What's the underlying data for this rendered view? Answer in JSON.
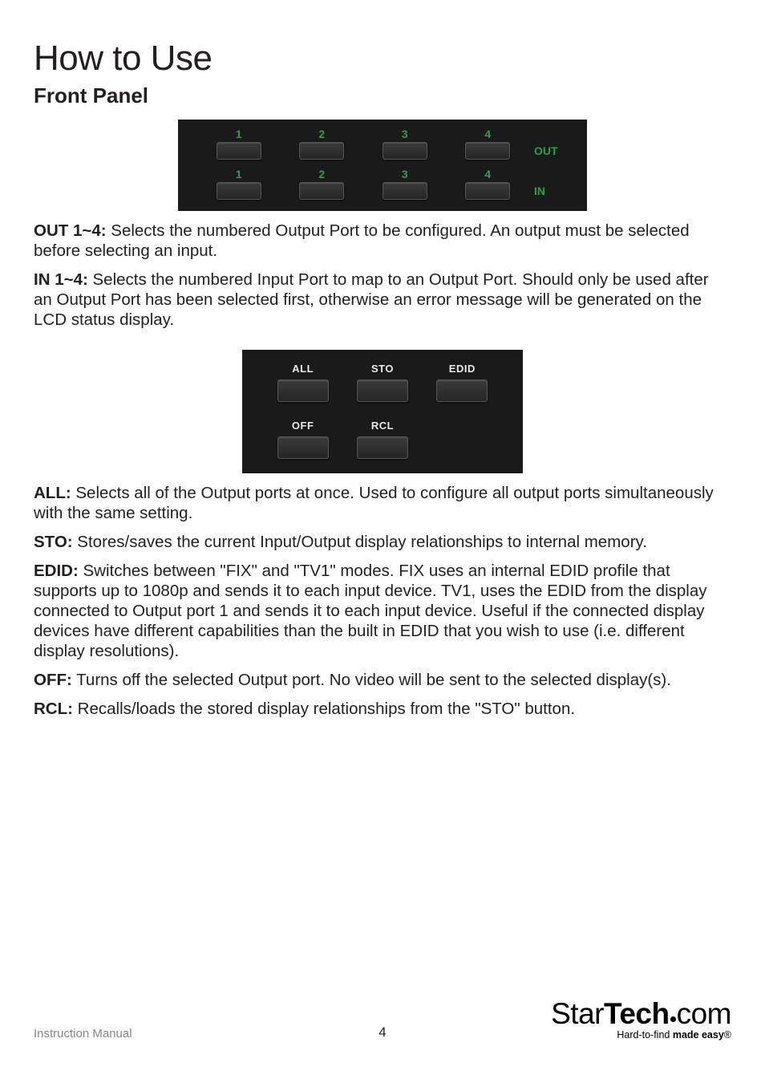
{
  "title": "How to Use",
  "subtitle": "Front Panel",
  "panel1": {
    "out_numbers": [
      "1",
      "2",
      "3",
      "4"
    ],
    "in_numbers": [
      "1",
      "2",
      "3",
      "4"
    ],
    "out_label": "OUT",
    "in_label": "IN",
    "bg_color": "#1a1a1a",
    "label_color": "#2aa04a"
  },
  "desc": {
    "out": {
      "lead": "OUT 1~4:",
      "text": " Selects the numbered Output Port to be configured.  An output must be selected before selecting an input."
    },
    "in": {
      "lead": "IN 1~4:",
      "text": " Selects the numbered Input Port to map to an Output Port.  Should only be used after an Output Port has been selected first, otherwise an error message will be generated on the LCD status display."
    }
  },
  "panel2": {
    "row1": [
      "ALL",
      "STO",
      "EDID"
    ],
    "row2": [
      "OFF",
      "RCL",
      ""
    ],
    "bg_color": "#1a1a1a",
    "label_color": "#e8e8e8"
  },
  "desc2": {
    "all": {
      "lead": "ALL:",
      "text": " Selects all of the Output ports at once.  Used to configure all output ports simultaneously with the same setting."
    },
    "sto": {
      "lead": "STO:",
      "text": " Stores/saves the current Input/Output display relationships to internal memory."
    },
    "edid": {
      "lead": "EDID:",
      "text": " Switches between \"FIX\" and \"TV1\" modes.  FIX uses an internal EDID profile that supports up to 1080p and sends it to each input device.  TV1, uses the EDID from the display connected to Output port 1 and sends it to each input device.  Useful if the connected display devices have different capabilities than the built in EDID that you wish to use (i.e. different display resolutions)."
    },
    "off": {
      "lead": "OFF:",
      "text": " Turns off the selected Output port.  No video will be sent to the selected display(s)."
    },
    "rcl": {
      "lead": "RCL:",
      "text": " Recalls/loads the stored display relationships from the \"STO\" button."
    }
  },
  "footer": {
    "manual": "Instruction Manual",
    "page": "4",
    "logo_a": "Star",
    "logo_b": "Tech",
    "logo_c": "com",
    "tag1": "Hard-to-find ",
    "tag2": "made easy",
    "reg": "®"
  }
}
